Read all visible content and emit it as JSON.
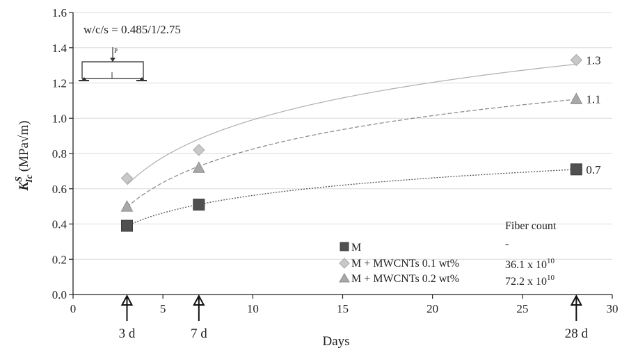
{
  "chart_data": {
    "type": "scatter",
    "annotation": "w/c/s = 0.485/1/2.75",
    "xlabel": "Days",
    "ylabel_main": "K",
    "ylabel_sup": "S",
    "ylabel_sub": "Ic",
    "ylabel_unit": "(MPa√m)",
    "xlim": [
      0,
      30
    ],
    "ylim": [
      0.0,
      1.6
    ],
    "x_ticks": [
      0,
      5,
      10,
      15,
      20,
      25,
      30
    ],
    "x_tick_labels": [
      "0",
      "5",
      "10",
      "15",
      "20",
      "25",
      "30"
    ],
    "y_ticks": [
      0.0,
      0.2,
      0.4,
      0.6,
      0.8,
      1.0,
      1.2,
      1.4,
      1.6
    ],
    "y_tick_labels": [
      "0.0",
      "0.2",
      "0.4",
      "0.6",
      "0.8",
      "1.0",
      "1.2",
      "1.4",
      "1.6"
    ],
    "grid": "horizontal",
    "age_markers": [
      {
        "x": 3,
        "label": "3 d"
      },
      {
        "x": 7,
        "label": "7 d"
      },
      {
        "x": 28,
        "label": "28 d"
      }
    ],
    "series": [
      {
        "name": "M",
        "marker": "square",
        "color": "#505050",
        "line_color": "#555555",
        "dash": "2,2",
        "x": [
          3,
          7,
          28
        ],
        "y": [
          0.39,
          0.51,
          0.71
        ],
        "end_label": "0.7",
        "fiber_count": "-"
      },
      {
        "name": "M + MWCNTs 0.1 wt%",
        "marker": "diamond",
        "color": "#c8c8c8",
        "line_color": "#b4b4b4",
        "dash": "",
        "x": [
          3,
          7,
          28
        ],
        "y": [
          0.66,
          0.82,
          1.33
        ],
        "end_label": "1.3",
        "fiber_count_base": "36.1 x 10",
        "fiber_count_exp": "10"
      },
      {
        "name": "M + MWCNTs 0.2 wt%",
        "marker": "triangle",
        "color": "#a8a8a8",
        "line_color": "#8c8c8c",
        "dash": "6,3",
        "x": [
          3,
          7,
          28
        ],
        "y": [
          0.5,
          0.72,
          1.11
        ],
        "end_label": "1.1",
        "fiber_count_base": "72.2 x 10",
        "fiber_count_exp": "10"
      }
    ],
    "fiber_count_header": "Fiber count",
    "beam_load_label": "P"
  }
}
